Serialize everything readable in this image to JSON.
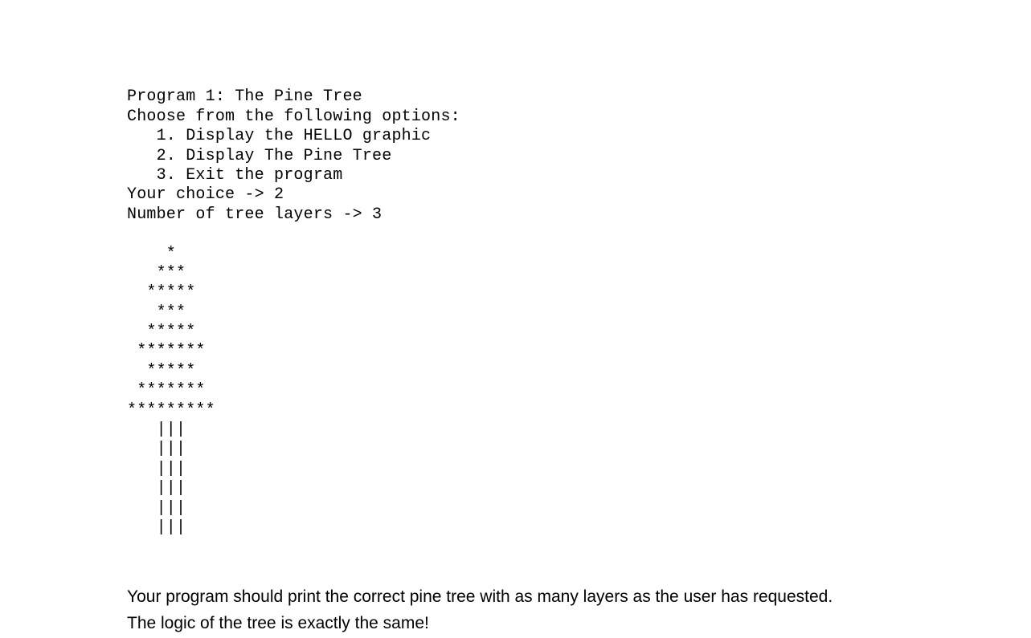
{
  "program": {
    "title": "Program 1: The Pine Tree",
    "menuHeader": "Choose from the following options:",
    "option1": "   1. Display the HELLO graphic",
    "option2": "   2. Display The Pine Tree",
    "option3": "   3. Exit the program",
    "promptChoice": "Your choice -> 2",
    "promptLayers": "Number of tree layers -> 3",
    "blank": "",
    "treeLines": [
      "    *",
      "   ***",
      "  *****",
      "   ***",
      "  *****",
      " *******",
      "  *****",
      " *******",
      "*********",
      "   |||",
      "   |||",
      "   |||",
      "   |||",
      "   |||",
      "   |||"
    ]
  },
  "description": {
    "line1": "Your program should print the correct pine tree with as many layers as the user has requested.",
    "line2": "The logic of the tree is exactly the same!"
  },
  "style": {
    "codeFontFamily": "Courier New",
    "codeFontSize": 20,
    "bodyFontFamily": "Arial",
    "bodyFontSize": 21,
    "textColor": "#000000",
    "backgroundColor": "#ffffff"
  }
}
